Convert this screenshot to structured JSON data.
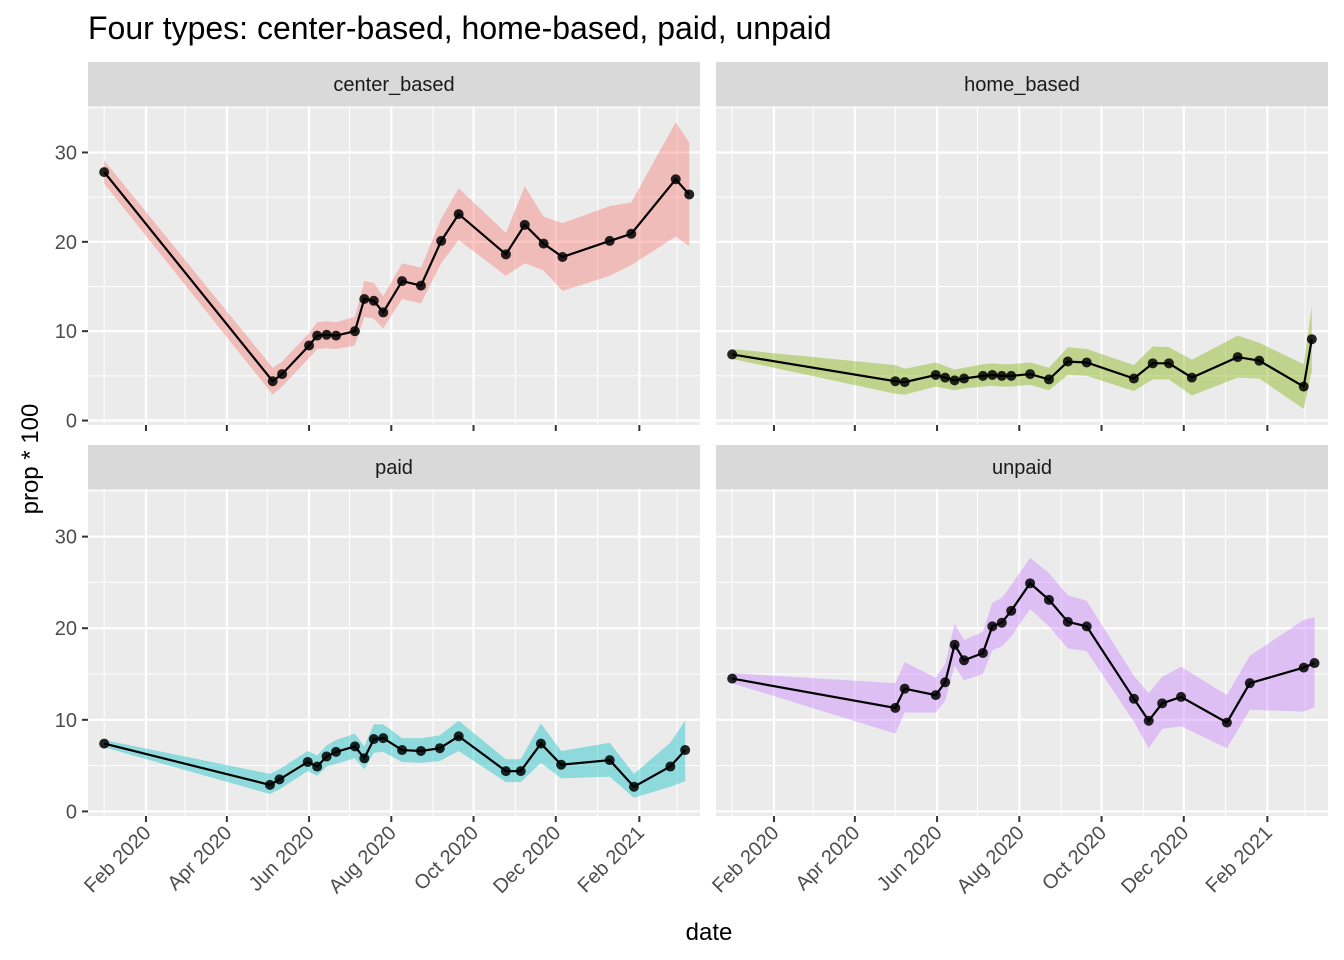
{
  "chart_data": {
    "type": "line",
    "title": "Four types: center-based, home-based, paid, unpaid",
    "xlabel": "date",
    "ylabel": "prop * 100",
    "x_ticks": [
      "Feb 2020",
      "Apr 2020",
      "Jun 2020",
      "Aug 2020",
      "Oct 2020",
      "Dec 2020",
      "Feb 2021"
    ],
    "xlim": [
      "2019-12-20",
      "2021-03-18"
    ],
    "y_ticks": [
      0,
      10,
      20,
      30
    ],
    "ylim": [
      -0.5,
      35.2
    ],
    "colors": {
      "center_based": "#F8766D",
      "home_based": "#7CAE00",
      "paid": "#00BFC4",
      "unpaid": "#C77CFF",
      "line": "#000000"
    },
    "panels": [
      {
        "name": "center_based",
        "points": [
          {
            "x": "2020-01-01",
            "y": 27.8,
            "lo": 26.5,
            "hi": 29.1
          },
          {
            "x": "2020-05-05",
            "y": 4.4,
            "lo": 2.9,
            "hi": 5.9
          },
          {
            "x": "2020-05-12",
            "y": 5.2,
            "lo": 3.8,
            "hi": 6.6
          },
          {
            "x": "2020-06-01",
            "y": 8.4,
            "lo": 7.0,
            "hi": 9.8
          },
          {
            "x": "2020-06-07",
            "y": 9.5,
            "lo": 8.0,
            "hi": 11.0
          },
          {
            "x": "2020-06-14",
            "y": 9.6,
            "lo": 8.1,
            "hi": 11.1
          },
          {
            "x": "2020-06-21",
            "y": 9.5,
            "lo": 8.0,
            "hi": 11.0
          },
          {
            "x": "2020-07-05",
            "y": 10.0,
            "lo": 8.4,
            "hi": 11.6
          },
          {
            "x": "2020-07-12",
            "y": 13.6,
            "lo": 11.6,
            "hi": 15.6
          },
          {
            "x": "2020-07-19",
            "y": 13.4,
            "lo": 11.4,
            "hi": 15.4
          },
          {
            "x": "2020-07-26",
            "y": 12.1,
            "lo": 10.3,
            "hi": 13.9
          },
          {
            "x": "2020-08-09",
            "y": 15.6,
            "lo": 13.6,
            "hi": 17.6
          },
          {
            "x": "2020-08-23",
            "y": 15.1,
            "lo": 13.1,
            "hi": 17.1
          },
          {
            "x": "2020-09-07",
            "y": 20.1,
            "lo": 17.6,
            "hi": 22.6
          },
          {
            "x": "2020-09-20",
            "y": 23.1,
            "lo": 20.2,
            "hi": 26.0
          },
          {
            "x": "2020-10-25",
            "y": 18.6,
            "lo": 16.2,
            "hi": 21.0
          },
          {
            "x": "2020-11-08",
            "y": 21.9,
            "lo": 17.6,
            "hi": 26.2
          },
          {
            "x": "2020-11-22",
            "y": 19.8,
            "lo": 16.8,
            "hi": 22.8
          },
          {
            "x": "2020-12-06",
            "y": 18.3,
            "lo": 14.5,
            "hi": 22.1
          },
          {
            "x": "2021-01-10",
            "y": 20.1,
            "lo": 16.2,
            "hi": 24.0
          },
          {
            "x": "2021-01-26",
            "y": 20.9,
            "lo": 17.4,
            "hi": 24.4
          },
          {
            "x": "2021-02-28",
            "y": 27.0,
            "lo": 20.6,
            "hi": 33.4
          },
          {
            "x": "2021-03-10",
            "y": 25.3,
            "lo": 19.5,
            "hi": 31.1
          }
        ]
      },
      {
        "name": "home_based",
        "points": [
          {
            "x": "2020-01-01",
            "y": 7.4,
            "lo": 6.9,
            "hi": 8.0
          },
          {
            "x": "2020-05-01",
            "y": 4.4,
            "lo": 3.0,
            "hi": 6.2
          },
          {
            "x": "2020-05-08",
            "y": 4.3,
            "lo": 2.9,
            "hi": 5.8
          },
          {
            "x": "2020-05-31",
            "y": 5.1,
            "lo": 3.8,
            "hi": 6.5
          },
          {
            "x": "2020-06-07",
            "y": 4.8,
            "lo": 3.6,
            "hi": 6.1
          },
          {
            "x": "2020-06-14",
            "y": 4.5,
            "lo": 3.4,
            "hi": 5.7
          },
          {
            "x": "2020-06-21",
            "y": 4.7,
            "lo": 3.6,
            "hi": 5.9
          },
          {
            "x": "2020-07-05",
            "y": 5.0,
            "lo": 3.8,
            "hi": 6.3
          },
          {
            "x": "2020-07-12",
            "y": 5.1,
            "lo": 3.9,
            "hi": 6.4
          },
          {
            "x": "2020-07-19",
            "y": 5.0,
            "lo": 3.8,
            "hi": 6.3
          },
          {
            "x": "2020-07-26",
            "y": 5.0,
            "lo": 3.8,
            "hi": 6.3
          },
          {
            "x": "2020-08-09",
            "y": 5.2,
            "lo": 4.0,
            "hi": 6.5
          },
          {
            "x": "2020-08-23",
            "y": 4.6,
            "lo": 3.4,
            "hi": 5.9
          },
          {
            "x": "2020-09-06",
            "y": 6.6,
            "lo": 5.1,
            "hi": 8.2
          },
          {
            "x": "2020-09-20",
            "y": 6.5,
            "lo": 5.0,
            "hi": 8.0
          },
          {
            "x": "2020-10-25",
            "y": 4.7,
            "lo": 3.3,
            "hi": 6.2
          },
          {
            "x": "2020-11-08",
            "y": 6.4,
            "lo": 4.6,
            "hi": 8.3
          },
          {
            "x": "2020-11-20",
            "y": 6.4,
            "lo": 4.6,
            "hi": 8.2
          },
          {
            "x": "2020-12-07",
            "y": 4.8,
            "lo": 2.8,
            "hi": 6.8
          },
          {
            "x": "2021-01-10",
            "y": 7.1,
            "lo": 4.8,
            "hi": 9.5
          },
          {
            "x": "2021-01-26",
            "y": 6.7,
            "lo": 4.7,
            "hi": 8.7
          },
          {
            "x": "2021-02-28",
            "y": 3.8,
            "lo": 1.3,
            "hi": 6.3
          },
          {
            "x": "2021-03-06",
            "y": 9.1,
            "lo": 5.5,
            "hi": 12.8
          }
        ]
      },
      {
        "name": "paid",
        "points": [
          {
            "x": "2020-01-01",
            "y": 7.4,
            "lo": 7.0,
            "hi": 7.8
          },
          {
            "x": "2020-05-03",
            "y": 2.9,
            "lo": 1.9,
            "hi": 4.1
          },
          {
            "x": "2020-05-10",
            "y": 3.5,
            "lo": 2.4,
            "hi": 4.6
          },
          {
            "x": "2020-05-31",
            "y": 5.4,
            "lo": 4.4,
            "hi": 6.6
          },
          {
            "x": "2020-06-07",
            "y": 4.9,
            "lo": 3.9,
            "hi": 6.1
          },
          {
            "x": "2020-06-14",
            "y": 6.0,
            "lo": 4.9,
            "hi": 7.2
          },
          {
            "x": "2020-06-21",
            "y": 6.5,
            "lo": 5.2,
            "hi": 7.8
          },
          {
            "x": "2020-07-05",
            "y": 7.1,
            "lo": 5.8,
            "hi": 8.5
          },
          {
            "x": "2020-07-12",
            "y": 5.8,
            "lo": 4.6,
            "hi": 7.1
          },
          {
            "x": "2020-07-19",
            "y": 7.9,
            "lo": 6.4,
            "hi": 9.5
          },
          {
            "x": "2020-07-26",
            "y": 8.0,
            "lo": 6.5,
            "hi": 9.5
          },
          {
            "x": "2020-08-09",
            "y": 6.7,
            "lo": 5.4,
            "hi": 8.0
          },
          {
            "x": "2020-08-23",
            "y": 6.6,
            "lo": 5.3,
            "hi": 8.0
          },
          {
            "x": "2020-09-06",
            "y": 6.9,
            "lo": 5.5,
            "hi": 8.3
          },
          {
            "x": "2020-09-20",
            "y": 8.2,
            "lo": 6.6,
            "hi": 9.9
          },
          {
            "x": "2020-10-25",
            "y": 4.4,
            "lo": 3.2,
            "hi": 5.7
          },
          {
            "x": "2020-11-05",
            "y": 4.4,
            "lo": 3.2,
            "hi": 5.7
          },
          {
            "x": "2020-11-20",
            "y": 7.4,
            "lo": 5.3,
            "hi": 9.6
          },
          {
            "x": "2020-12-05",
            "y": 5.1,
            "lo": 3.6,
            "hi": 6.6
          },
          {
            "x": "2021-01-10",
            "y": 5.6,
            "lo": 3.8,
            "hi": 7.5
          },
          {
            "x": "2021-01-28",
            "y": 2.7,
            "lo": 1.5,
            "hi": 4.1
          },
          {
            "x": "2021-02-24",
            "y": 4.9,
            "lo": 2.7,
            "hi": 7.5
          },
          {
            "x": "2021-03-07",
            "y": 6.7,
            "lo": 3.3,
            "hi": 9.9
          }
        ]
      },
      {
        "name": "unpaid",
        "points": [
          {
            "x": "2020-01-01",
            "y": 14.5,
            "lo": 14.0,
            "hi": 15.1
          },
          {
            "x": "2020-05-01",
            "y": 11.3,
            "lo": 8.5,
            "hi": 14.0
          },
          {
            "x": "2020-05-08",
            "y": 13.4,
            "lo": 10.8,
            "hi": 16.3
          },
          {
            "x": "2020-05-31",
            "y": 12.7,
            "lo": 10.8,
            "hi": 14.6
          },
          {
            "x": "2020-06-07",
            "y": 14.1,
            "lo": 12.1,
            "hi": 16.1
          },
          {
            "x": "2020-06-14",
            "y": 18.2,
            "lo": 15.9,
            "hi": 20.5
          },
          {
            "x": "2020-06-21",
            "y": 16.5,
            "lo": 14.3,
            "hi": 18.7
          },
          {
            "x": "2020-07-05",
            "y": 17.3,
            "lo": 15.0,
            "hi": 19.6
          },
          {
            "x": "2020-07-12",
            "y": 20.2,
            "lo": 17.6,
            "hi": 22.8
          },
          {
            "x": "2020-07-19",
            "y": 20.6,
            "lo": 18.0,
            "hi": 23.3
          },
          {
            "x": "2020-07-26",
            "y": 21.9,
            "lo": 19.1,
            "hi": 24.7
          },
          {
            "x": "2020-08-09",
            "y": 24.9,
            "lo": 22.1,
            "hi": 27.7
          },
          {
            "x": "2020-08-23",
            "y": 23.1,
            "lo": 20.2,
            "hi": 26.0
          },
          {
            "x": "2020-09-06",
            "y": 20.7,
            "lo": 17.8,
            "hi": 23.6
          },
          {
            "x": "2020-09-20",
            "y": 20.2,
            "lo": 17.5,
            "hi": 23.0
          },
          {
            "x": "2020-10-25",
            "y": 12.3,
            "lo": 9.8,
            "hi": 14.8
          },
          {
            "x": "2020-11-05",
            "y": 9.9,
            "lo": 6.9,
            "hi": 12.9
          },
          {
            "x": "2020-11-15",
            "y": 11.8,
            "lo": 9.0,
            "hi": 14.7
          },
          {
            "x": "2020-11-29",
            "y": 12.5,
            "lo": 9.3,
            "hi": 15.8
          },
          {
            "x": "2021-01-02",
            "y": 9.7,
            "lo": 6.9,
            "hi": 12.7
          },
          {
            "x": "2021-01-19",
            "y": 14.0,
            "lo": 11.1,
            "hi": 17.0
          },
          {
            "x": "2021-02-28",
            "y": 15.7,
            "lo": 10.9,
            "hi": 20.9
          },
          {
            "x": "2021-03-08",
            "y": 16.2,
            "lo": 11.4,
            "hi": 21.2
          }
        ]
      }
    ]
  }
}
